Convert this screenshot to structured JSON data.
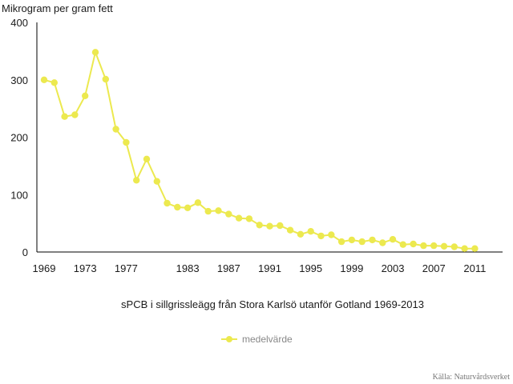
{
  "chart_data": {
    "type": "line",
    "ylabel": "Mikrogram per gram fett",
    "title": "sPCB i sillgrissleägg från Stora Karlsö utanför Gotland 1969-2013",
    "ylim": [
      0,
      400
    ],
    "yticks": [
      0,
      100,
      200,
      300,
      400
    ],
    "xlim": [
      1969,
      2013
    ],
    "xticks": [
      1969,
      1973,
      1977,
      1983,
      1987,
      1991,
      1995,
      1999,
      2003,
      2007,
      2011
    ],
    "series": [
      {
        "name": "medelvärde",
        "color": "#ece94f",
        "points": [
          [
            1969,
            300
          ],
          [
            1970,
            295
          ],
          [
            1971,
            236
          ],
          [
            1972,
            239
          ],
          [
            1973,
            272
          ],
          [
            1974,
            348
          ],
          [
            1975,
            301
          ],
          [
            1976,
            214
          ],
          [
            1977,
            191
          ],
          [
            1978,
            125
          ],
          [
            1979,
            162
          ],
          [
            1980,
            123
          ],
          [
            1981,
            85
          ],
          [
            1982,
            78
          ],
          [
            1983,
            77
          ],
          [
            1984,
            86
          ],
          [
            1985,
            71
          ],
          [
            1986,
            72
          ],
          [
            1987,
            66
          ],
          [
            1988,
            59
          ],
          [
            1989,
            58
          ],
          [
            1990,
            47
          ],
          [
            1991,
            45
          ],
          [
            1992,
            46
          ],
          [
            1993,
            38
          ],
          [
            1994,
            31
          ],
          [
            1995,
            36
          ],
          [
            1996,
            28
          ],
          [
            1997,
            30
          ],
          [
            1998,
            18
          ],
          [
            1999,
            21
          ],
          [
            2000,
            18
          ],
          [
            2001,
            21
          ],
          [
            2002,
            16
          ],
          [
            2003,
            22
          ],
          [
            2004,
            13
          ],
          [
            2005,
            14
          ],
          [
            2006,
            11
          ],
          [
            2007,
            11
          ],
          [
            2008,
            10
          ],
          [
            2009,
            9
          ],
          [
            2010,
            6
          ],
          [
            2011,
            6
          ]
        ]
      }
    ],
    "legend": {
      "label": "medelvärde",
      "position": "bottom-center"
    },
    "source": "Källa: Naturvårdsverket"
  }
}
